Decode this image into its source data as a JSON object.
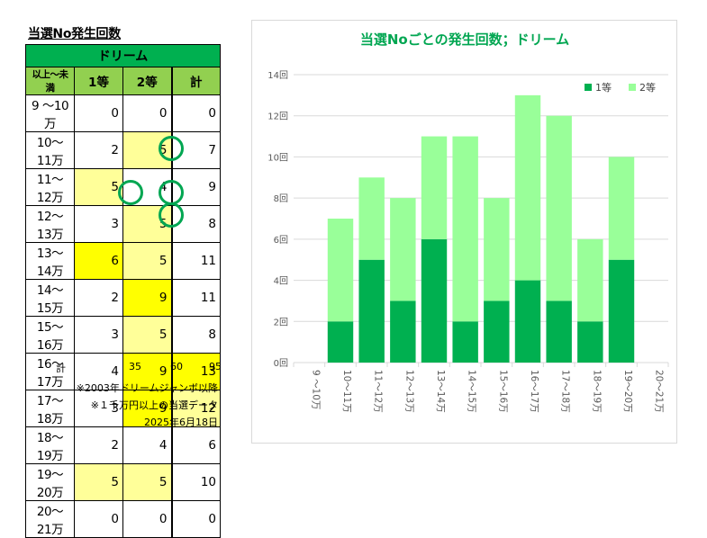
{
  "table": {
    "title": "当選No発生回数",
    "header": "ドリーム",
    "columns": [
      "以上～未満",
      "1等",
      "2等",
      "計"
    ],
    "rows": [
      {
        "range": "9 ～10万",
        "first": "0",
        "second": "0",
        "total": "0"
      },
      {
        "range": "10～11万",
        "first": "2",
        "second": "5",
        "total": "7"
      },
      {
        "range": "11～12万",
        "first": "5",
        "second": "4",
        "total": "9"
      },
      {
        "range": "12～13万",
        "first": "3",
        "second": "5",
        "total": "8"
      },
      {
        "range": "13～14万",
        "first": "6",
        "second": "5",
        "total": "11"
      },
      {
        "range": "14～15万",
        "first": "2",
        "second": "9",
        "total": "11"
      },
      {
        "range": "15～16万",
        "first": "3",
        "second": "5",
        "total": "8"
      },
      {
        "range": "16～17万",
        "first": "4",
        "second": "9",
        "total": "13"
      },
      {
        "range": "17～18万",
        "first": "3",
        "second": "9",
        "total": "12"
      },
      {
        "range": "18～19万",
        "first": "2",
        "second": "4",
        "total": "6"
      },
      {
        "range": "19～20万",
        "first": "5",
        "second": "5",
        "total": "10"
      },
      {
        "range": "20～21万",
        "first": "0",
        "second": "0",
        "total": "0"
      }
    ],
    "totals": {
      "label": "計",
      "first": "35",
      "second": "60",
      "total": "95"
    },
    "notes": [
      "※2003年ドリームジャンボ以降",
      "※１千万円以上の当選データ",
      "2025年6月18日"
    ]
  },
  "colors": {
    "first": "#00b050",
    "second": "#99ff99",
    "header": "#00b050",
    "subheader": "#92d050",
    "highlight_light": "#ffff99",
    "highlight_strong": "#ffff00",
    "circle": "#00a651"
  },
  "chart_data": {
    "type": "bar",
    "stacked": true,
    "title": "当選Noごとの発生回数；ドリーム",
    "categories": [
      "9 ～10万",
      "10～11万",
      "11～12万",
      "12～13万",
      "13～14万",
      "14～15万",
      "15～16万",
      "16～17万",
      "17～18万",
      "18～19万",
      "19～20万",
      "20～21万"
    ],
    "series": [
      {
        "name": "1等",
        "values": [
          0,
          2,
          5,
          3,
          6,
          2,
          3,
          4,
          3,
          2,
          5,
          0
        ]
      },
      {
        "name": "2等",
        "values": [
          0,
          5,
          4,
          5,
          5,
          9,
          5,
          9,
          9,
          4,
          5,
          0
        ]
      }
    ],
    "yticks": [
      "0回",
      "2回",
      "4回",
      "6回",
      "8回",
      "10回",
      "12回",
      "14回"
    ],
    "ylim": [
      0,
      14
    ],
    "grid": true,
    "legend": "top-right"
  }
}
